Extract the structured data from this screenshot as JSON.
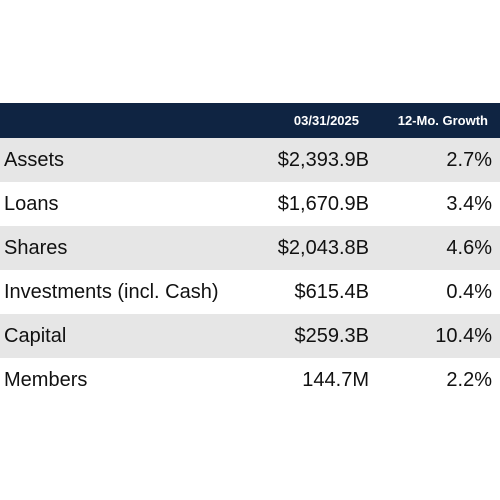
{
  "colors": {
    "header_bg": "#0f2442",
    "row_shaded": "#e6e6e6",
    "row_plain": "#ffffff"
  },
  "table": {
    "headers": {
      "label": "",
      "date": "03/31/2025",
      "growth": "12-Mo. Growth"
    },
    "rows": [
      {
        "label": "Assets",
        "value": "$2,393.9B",
        "growth": "2.7%",
        "shaded": true
      },
      {
        "label": "Loans",
        "value": "$1,670.9B",
        "growth": "3.4%",
        "shaded": false
      },
      {
        "label": "Shares",
        "value": "$2,043.8B",
        "growth": "4.6%",
        "shaded": true
      },
      {
        "label": "Investments (incl. Cash)",
        "value": "$615.4B",
        "growth": "0.4%",
        "shaded": false
      },
      {
        "label": "Capital",
        "value": "$259.3B",
        "growth": "10.4%",
        "shaded": true
      },
      {
        "label": "Members",
        "value": "144.7M",
        "growth": "2.2%",
        "shaded": false
      }
    ]
  }
}
